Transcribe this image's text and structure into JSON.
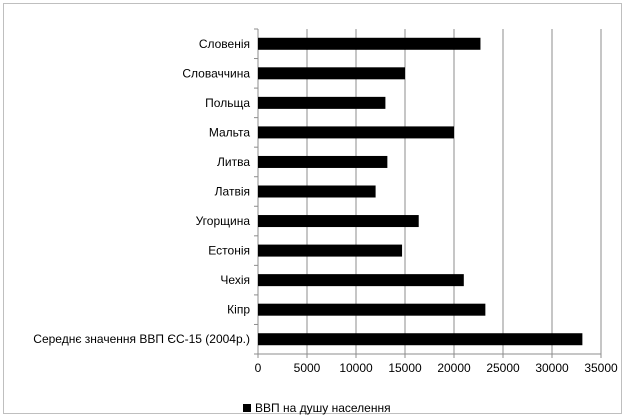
{
  "chart_data": {
    "type": "bar",
    "orientation": "horizontal",
    "categories": [
      "Словенія",
      "Словаччина",
      "Польща",
      "Мальта",
      "Литва",
      "Латвія",
      "Угорщина",
      "Естонія",
      "Чехія",
      "Кіпр",
      "Середнє значення ВВП ЄС-15 (2004р.)"
    ],
    "series": [
      {
        "name": "ВВП на душу населення",
        "values": [
          22700,
          15000,
          13000,
          20000,
          13200,
          12000,
          16400,
          14700,
          21000,
          23200,
          33100
        ],
        "color": "#000000"
      }
    ],
    "xlim": [
      0,
      35000
    ],
    "xticks": [
      0,
      5000,
      10000,
      15000,
      20000,
      25000,
      30000,
      35000
    ],
    "grid": "vertical",
    "legend": "bottom"
  }
}
